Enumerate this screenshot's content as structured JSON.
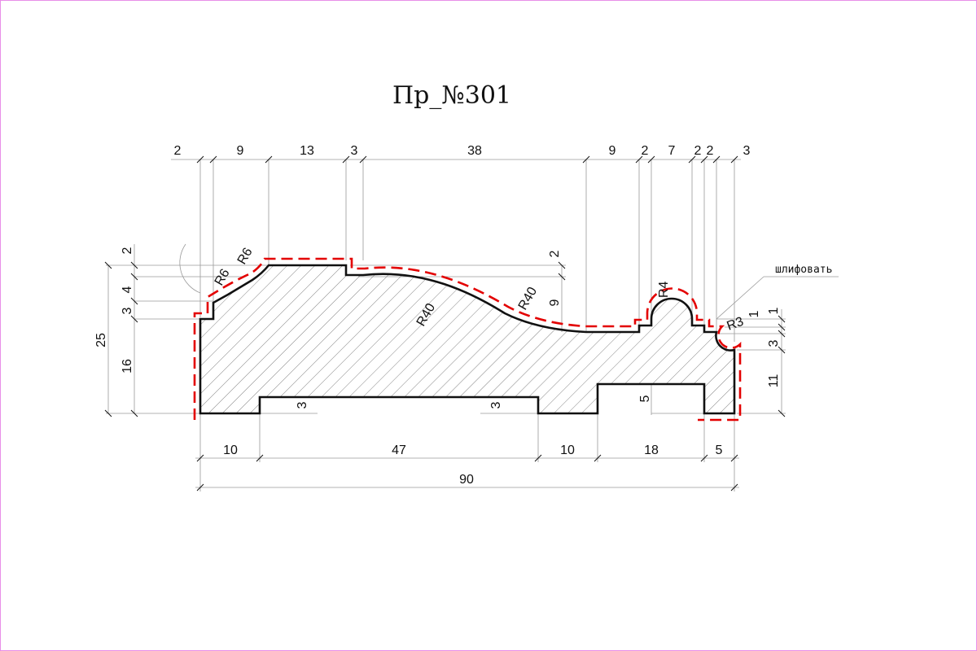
{
  "title": "Пр_№301",
  "colors": {
    "outline": "#111111",
    "dashed": "#e30000",
    "hatch": "#777777",
    "dimension": "#111111",
    "extension": "#9a9a9a",
    "frame": "#e88ee8"
  },
  "dimensions": {
    "top_row": [
      "2",
      "9",
      "13",
      "3",
      "38",
      "9",
      "2",
      "7",
      "2",
      "2",
      "3"
    ],
    "bottom_row": [
      "10",
      "47",
      "10",
      "18",
      "5"
    ],
    "total": "90",
    "left_col": [
      "2",
      "4",
      "3",
      "25",
      "16"
    ],
    "right_col": [
      "1",
      "1",
      "3",
      "11"
    ],
    "inner": [
      "3",
      "3",
      "5",
      "2",
      "9"
    ]
  },
  "radii": [
    "R6",
    "R6",
    "R40",
    "R40",
    "R4",
    "R3"
  ],
  "annotation": "шлифовать"
}
